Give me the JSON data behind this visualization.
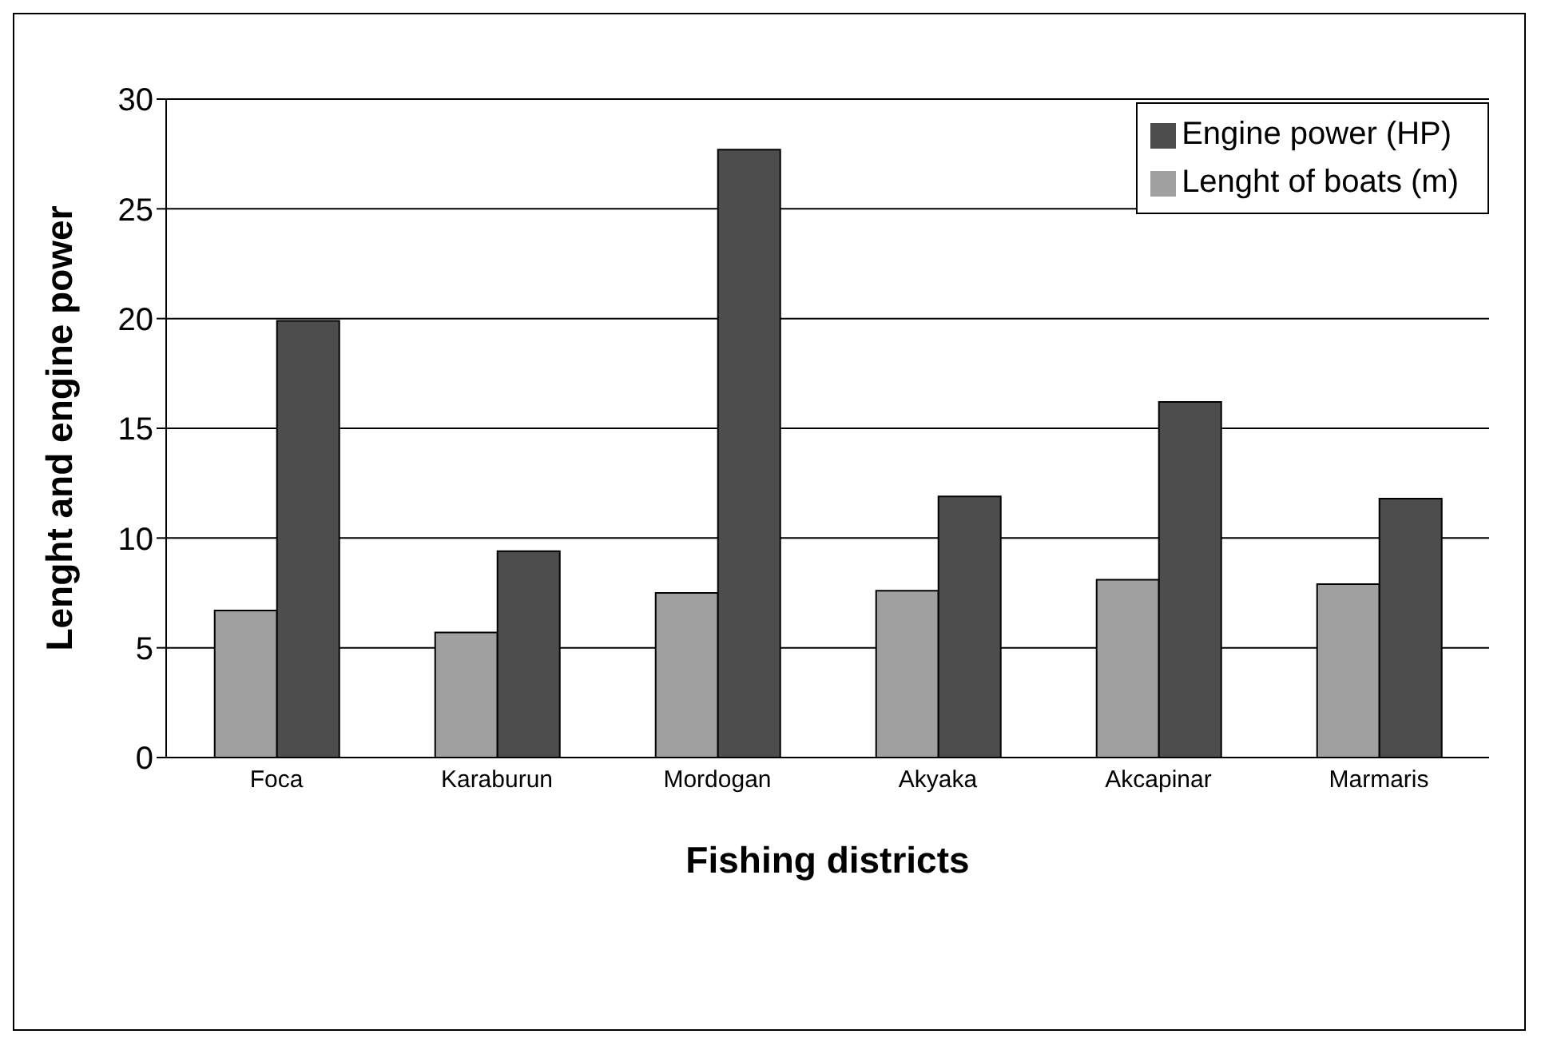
{
  "chart_data": {
    "type": "bar",
    "xlabel": "Fishing districts",
    "ylabel": "Lenght and engine power",
    "categories": [
      "Foca",
      "Karaburun",
      "Mordogan",
      "Akyaka",
      "Akcapinar",
      "Marmaris"
    ],
    "series": [
      {
        "name": "Lenght of boats (m)",
        "color": "#a0a0a0",
        "values": [
          6.7,
          5.7,
          7.5,
          7.6,
          8.1,
          7.9
        ]
      },
      {
        "name": "Engine power (HP)",
        "color": "#4d4d4d",
        "values": [
          19.9,
          9.4,
          27.7,
          11.9,
          16.2,
          11.8
        ]
      }
    ],
    "ylim": [
      0,
      30
    ],
    "yticks": [
      0,
      5,
      10,
      15,
      20,
      25,
      30
    ],
    "grid": "y",
    "legend": "top right"
  }
}
